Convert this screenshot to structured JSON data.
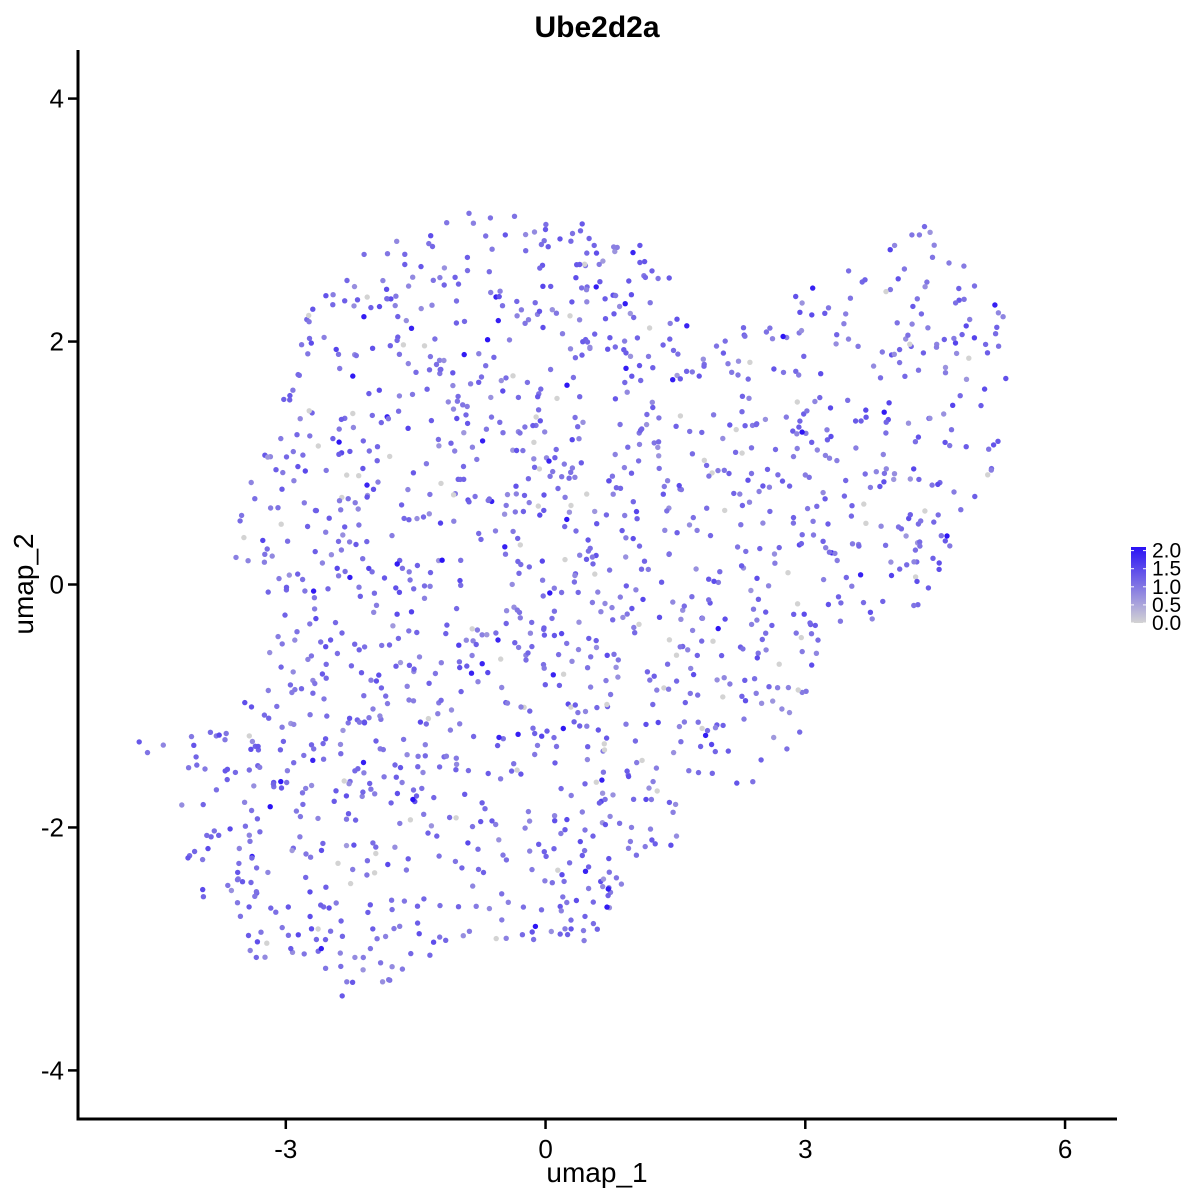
{
  "chart_data": {
    "type": "scatter",
    "title": "Ube2d2a",
    "xlabel": "umap_1",
    "ylabel": "umap_2",
    "xlim": [
      -5.4,
      6.6
    ],
    "ylim": [
      -4.4,
      4.4
    ],
    "x_ticks": [
      -3,
      0,
      3,
      6
    ],
    "y_ticks": [
      -4,
      -2,
      0,
      2,
      4
    ],
    "x_tick_labels": [
      "-3",
      "0",
      "3",
      "6"
    ],
    "y_tick_labels": [
      "-4",
      "-2",
      "0",
      "2",
      "4"
    ],
    "grid": false,
    "legend": {
      "placement": "right",
      "color_min": "#d3d3d3",
      "color_max": "#2a12f5",
      "values": [
        0.0,
        0.5,
        1.0,
        1.5,
        2.0
      ],
      "labels": [
        "0.0",
        "0.5",
        "1.0",
        "1.5",
        "2.0"
      ],
      "range": [
        0.0,
        2.1
      ]
    },
    "point_count": 1600,
    "point_generation_seed": 7,
    "expression_distribution": {
      "zero_fraction": 0.06,
      "typical_range": [
        0.6,
        1.6
      ],
      "max": 2.1
    },
    "shape_outline": [
      [
        -4.7,
        -1.3
      ],
      [
        -4.55,
        -1.1
      ],
      [
        -4.3,
        -1.3
      ],
      [
        -3.5,
        -1.0
      ],
      [
        -3.1,
        -0.3
      ],
      [
        -3.7,
        0.2
      ],
      [
        -3.3,
        1.2
      ],
      [
        -3.0,
        1.6
      ],
      [
        -2.8,
        2.2
      ],
      [
        -2.3,
        2.6
      ],
      [
        -1.8,
        2.9
      ],
      [
        -1.0,
        3.05
      ],
      [
        0.0,
        3.1
      ],
      [
        0.8,
        2.95
      ],
      [
        1.4,
        2.75
      ],
      [
        1.6,
        2.2
      ],
      [
        1.9,
        2.0
      ],
      [
        2.4,
        2.2
      ],
      [
        3.2,
        2.5
      ],
      [
        4.0,
        2.8
      ],
      [
        4.5,
        3.05
      ],
      [
        4.9,
        2.7
      ],
      [
        5.3,
        2.3
      ],
      [
        5.35,
        1.8
      ],
      [
        5.2,
        1.0
      ],
      [
        4.9,
        0.4
      ],
      [
        4.6,
        0.0
      ],
      [
        4.1,
        -0.4
      ],
      [
        3.7,
        -0.3
      ],
      [
        3.2,
        -0.4
      ],
      [
        3.2,
        -0.9
      ],
      [
        2.8,
        -1.4
      ],
      [
        2.3,
        -1.7
      ],
      [
        1.8,
        -1.95
      ],
      [
        1.4,
        -2.2
      ],
      [
        1.0,
        -2.6
      ],
      [
        0.7,
        -2.9
      ],
      [
        0.2,
        -3.0
      ],
      [
        -0.5,
        -2.95
      ],
      [
        -1.2,
        -3.0
      ],
      [
        -1.7,
        -3.2
      ],
      [
        -2.2,
        -3.5
      ],
      [
        -2.7,
        -3.2
      ],
      [
        -3.3,
        -3.1
      ],
      [
        -3.8,
        -2.8
      ],
      [
        -4.15,
        -2.3
      ],
      [
        -4.25,
        -1.8
      ],
      [
        -4.5,
        -1.7
      ]
    ]
  }
}
